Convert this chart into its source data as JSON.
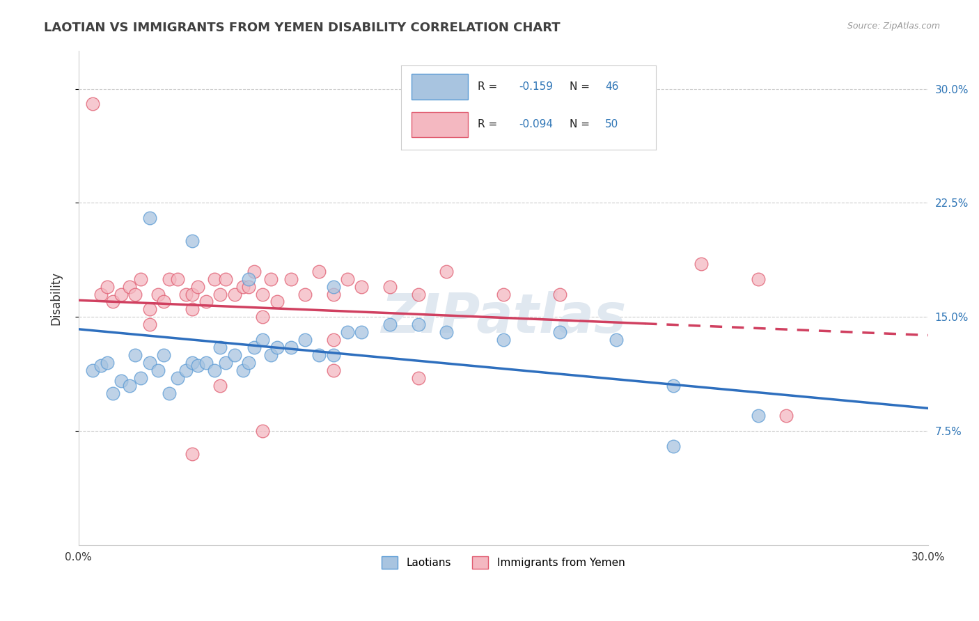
{
  "title": "LAOTIAN VS IMMIGRANTS FROM YEMEN DISABILITY CORRELATION CHART",
  "source": "Source: ZipAtlas.com",
  "ylabel": "Disability",
  "xlim": [
    0.0,
    0.3
  ],
  "ylim": [
    0.0,
    0.325
  ],
  "grid_color": "#cccccc",
  "background_color": "#ffffff",
  "laotian_color": "#a8c4e0",
  "laotian_edge_color": "#5b9bd5",
  "yemen_color": "#f4b8c1",
  "yemen_edge_color": "#e05c70",
  "laotian_R": -0.159,
  "laotian_N": 46,
  "yemen_R": -0.094,
  "yemen_N": 50,
  "laotian_line_color": "#2e6fbe",
  "yemen_line_color": "#d04060",
  "watermark": "ZIPatlas",
  "legend_color": "#2e75b6",
  "text_color": "#333333",
  "laotian_x": [
    0.005,
    0.008,
    0.01,
    0.012,
    0.015,
    0.018,
    0.02,
    0.022,
    0.025,
    0.028,
    0.03,
    0.032,
    0.035,
    0.038,
    0.04,
    0.042,
    0.045,
    0.048,
    0.05,
    0.052,
    0.055,
    0.058,
    0.06,
    0.062,
    0.065,
    0.068,
    0.07,
    0.075,
    0.08,
    0.085,
    0.09,
    0.095,
    0.1,
    0.11,
    0.12,
    0.13,
    0.15,
    0.17,
    0.19,
    0.21,
    0.025,
    0.04,
    0.06,
    0.09,
    0.24,
    0.21
  ],
  "laotian_y": [
    0.115,
    0.118,
    0.12,
    0.1,
    0.108,
    0.105,
    0.125,
    0.11,
    0.12,
    0.115,
    0.125,
    0.1,
    0.11,
    0.115,
    0.12,
    0.118,
    0.12,
    0.115,
    0.13,
    0.12,
    0.125,
    0.115,
    0.12,
    0.13,
    0.135,
    0.125,
    0.13,
    0.13,
    0.135,
    0.125,
    0.125,
    0.14,
    0.14,
    0.145,
    0.145,
    0.14,
    0.135,
    0.14,
    0.135,
    0.105,
    0.215,
    0.2,
    0.175,
    0.17,
    0.085,
    0.065
  ],
  "yemen_x": [
    0.005,
    0.008,
    0.01,
    0.012,
    0.015,
    0.018,
    0.02,
    0.022,
    0.025,
    0.028,
    0.03,
    0.032,
    0.035,
    0.038,
    0.04,
    0.042,
    0.045,
    0.048,
    0.05,
    0.052,
    0.055,
    0.058,
    0.06,
    0.062,
    0.065,
    0.068,
    0.07,
    0.075,
    0.08,
    0.085,
    0.09,
    0.095,
    0.1,
    0.11,
    0.12,
    0.13,
    0.15,
    0.17,
    0.22,
    0.24,
    0.025,
    0.04,
    0.065,
    0.09,
    0.25,
    0.065,
    0.09,
    0.12,
    0.05,
    0.04
  ],
  "yemen_y": [
    0.29,
    0.165,
    0.17,
    0.16,
    0.165,
    0.17,
    0.165,
    0.175,
    0.155,
    0.165,
    0.16,
    0.175,
    0.175,
    0.165,
    0.165,
    0.17,
    0.16,
    0.175,
    0.165,
    0.175,
    0.165,
    0.17,
    0.17,
    0.18,
    0.165,
    0.175,
    0.16,
    0.175,
    0.165,
    0.18,
    0.165,
    0.175,
    0.17,
    0.17,
    0.165,
    0.18,
    0.165,
    0.165,
    0.185,
    0.175,
    0.145,
    0.155,
    0.15,
    0.135,
    0.085,
    0.075,
    0.115,
    0.11,
    0.105,
    0.06
  ],
  "lao_trend_x0": 0.0,
  "lao_trend_y0": 0.142,
  "lao_trend_x1": 0.3,
  "lao_trend_y1": 0.09,
  "yem_trend_x0": 0.0,
  "yem_trend_y0": 0.161,
  "yem_trend_x1": 0.3,
  "yem_trend_y1": 0.138
}
